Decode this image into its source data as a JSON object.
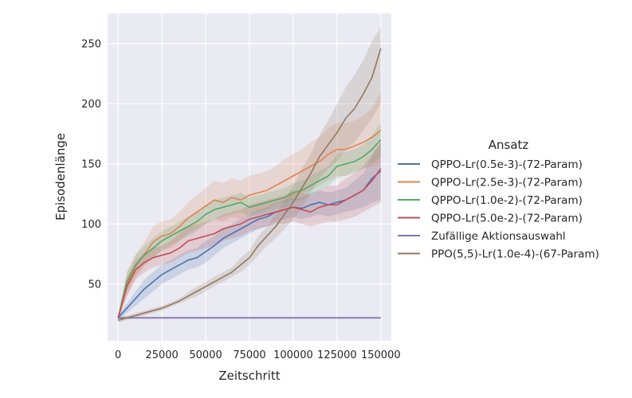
{
  "chart_data": {
    "type": "line",
    "xlabel": "Zeitschritt",
    "ylabel": "Episodenlänge",
    "xlim": [
      -6000,
      156000
    ],
    "ylim": [
      3,
      275
    ],
    "xticks": [
      0,
      25000,
      50000,
      75000,
      100000,
      125000,
      150000
    ],
    "xtick_labels": [
      "0",
      "25000",
      "50000",
      "75000",
      "100000",
      "125000",
      "150000"
    ],
    "yticks": [
      50,
      100,
      150,
      200,
      250
    ],
    "ytick_labels": [
      "50",
      "100",
      "150",
      "200",
      "250"
    ],
    "grid": true,
    "legend": {
      "title": "Ansatz",
      "placement": "right-outside"
    },
    "x": [
      0,
      5000,
      10000,
      15000,
      20000,
      25000,
      30000,
      35000,
      40000,
      45000,
      50000,
      55000,
      60000,
      65000,
      70000,
      75000,
      80000,
      85000,
      90000,
      95000,
      100000,
      105000,
      110000,
      115000,
      120000,
      125000,
      130000,
      135000,
      140000,
      145000,
      150000
    ],
    "series": [
      {
        "name": "QPPO-Lr(0.5e-3)-(72-Param)",
        "color": "#4c72b0",
        "values": [
          22,
          30,
          38,
          46,
          52,
          58,
          62,
          66,
          70,
          72,
          77,
          82,
          88,
          92,
          96,
          100,
          104,
          106,
          110,
          112,
          114,
          113,
          116,
          118,
          116,
          118,
          120,
          124,
          128,
          138,
          144
        ],
        "lower": [
          20,
          26,
          32,
          38,
          44,
          50,
          54,
          58,
          62,
          64,
          68,
          74,
          80,
          84,
          88,
          92,
          96,
          98,
          102,
          104,
          106,
          104,
          106,
          108,
          106,
          108,
          110,
          112,
          114,
          118,
          120
        ],
        "upper": [
          24,
          34,
          44,
          54,
          60,
          66,
          70,
          74,
          78,
          80,
          86,
          90,
          96,
          100,
          104,
          108,
          112,
          114,
          118,
          120,
          122,
          122,
          126,
          128,
          126,
          128,
          130,
          136,
          142,
          156,
          168
        ]
      },
      {
        "name": "QPPO-Lr(2.5e-3)-(72-Param)",
        "color": "#dd8452",
        "values": [
          22,
          50,
          65,
          75,
          85,
          90,
          92,
          98,
          105,
          110,
          115,
          120,
          118,
          122,
          120,
          124,
          126,
          128,
          132,
          136,
          140,
          144,
          148,
          152,
          158,
          162,
          162,
          165,
          168,
          172,
          178
        ],
        "lower": [
          20,
          40,
          55,
          65,
          72,
          78,
          80,
          86,
          92,
          96,
          100,
          104,
          102,
          106,
          104,
          108,
          110,
          112,
          116,
          118,
          122,
          126,
          128,
          132,
          136,
          140,
          140,
          144,
          146,
          148,
          150
        ],
        "upper": [
          24,
          60,
          75,
          85,
          98,
          102,
          104,
          110,
          118,
          124,
          130,
          136,
          134,
          138,
          136,
          140,
          142,
          144,
          148,
          154,
          158,
          162,
          168,
          172,
          180,
          184,
          184,
          186,
          190,
          196,
          210
        ]
      },
      {
        "name": "QPPO-Lr(1.0e-2)-(72-Param)",
        "color": "#55a868",
        "values": [
          22,
          52,
          66,
          74,
          80,
          86,
          90,
          94,
          98,
          102,
          108,
          112,
          114,
          116,
          118,
          114,
          116,
          118,
          120,
          122,
          126,
          128,
          132,
          136,
          140,
          148,
          150,
          152,
          156,
          162,
          170
        ],
        "lower": [
          20,
          44,
          58,
          66,
          72,
          78,
          82,
          86,
          90,
          94,
          100,
          104,
          106,
          108,
          110,
          106,
          108,
          110,
          112,
          114,
          118,
          120,
          124,
          128,
          132,
          138,
          140,
          142,
          146,
          150,
          156
        ],
        "upper": [
          24,
          60,
          74,
          82,
          88,
          94,
          98,
          102,
          106,
          110,
          116,
          120,
          122,
          124,
          126,
          122,
          124,
          126,
          128,
          130,
          134,
          136,
          140,
          144,
          148,
          158,
          160,
          162,
          166,
          174,
          184
        ]
      },
      {
        "name": "QPPO-Lr(5.0e-2)-(72-Param)",
        "color": "#c44e52",
        "values": [
          22,
          48,
          62,
          68,
          72,
          74,
          76,
          80,
          86,
          88,
          90,
          92,
          96,
          98,
          100,
          104,
          106,
          108,
          110,
          112,
          114,
          112,
          110,
          114,
          116,
          116,
          120,
          124,
          128,
          136,
          146
        ],
        "lower": [
          20,
          40,
          54,
          60,
          64,
          66,
          68,
          72,
          76,
          78,
          80,
          82,
          86,
          88,
          90,
          94,
          96,
          98,
          100,
          100,
          102,
          100,
          98,
          100,
          102,
          102,
          104,
          106,
          110,
          114,
          118
        ],
        "upper": [
          24,
          56,
          70,
          76,
          80,
          82,
          86,
          92,
          98,
          100,
          102,
          104,
          108,
          110,
          112,
          116,
          118,
          120,
          122,
          124,
          128,
          126,
          124,
          128,
          132,
          132,
          138,
          142,
          148,
          158,
          168
        ]
      },
      {
        "name": "Zufällige Aktionsauswahl",
        "color": "#8172b3",
        "values": [
          22,
          22,
          22,
          22,
          22,
          22,
          22,
          22,
          22,
          22,
          22,
          22,
          22,
          22,
          22,
          22,
          22,
          22,
          22,
          22,
          22,
          22,
          22,
          22,
          22,
          22,
          22,
          22,
          22,
          22,
          22
        ],
        "lower": [
          21,
          21,
          21,
          21,
          21,
          21,
          21,
          21,
          21,
          21,
          21,
          21,
          21,
          21,
          21,
          21,
          21,
          21,
          21,
          21,
          21,
          21,
          21,
          21,
          21,
          21,
          21,
          21,
          21,
          21,
          21
        ],
        "upper": [
          23,
          23,
          23,
          23,
          23,
          23,
          23,
          23,
          23,
          23,
          23,
          23,
          23,
          23,
          23,
          23,
          23,
          23,
          23,
          23,
          23,
          23,
          23,
          23,
          23,
          23,
          23,
          23,
          23,
          23,
          23
        ]
      },
      {
        "name": "PPO(5,5)-Lr(1.0e-4)-(67-Param)",
        "color": "#937860",
        "values": [
          20,
          22,
          24,
          26,
          28,
          30,
          33,
          36,
          40,
          44,
          48,
          52,
          56,
          60,
          66,
          72,
          82,
          90,
          98,
          108,
          118,
          130,
          142,
          156,
          166,
          176,
          188,
          196,
          208,
          222,
          246
        ],
        "lower": [
          18,
          20,
          22,
          24,
          26,
          28,
          31,
          34,
          37,
          40,
          44,
          48,
          52,
          56,
          60,
          66,
          74,
          82,
          88,
          96,
          104,
          114,
          126,
          138,
          146,
          152,
          162,
          168,
          178,
          188,
          200
        ],
        "upper": [
          22,
          24,
          26,
          28,
          30,
          32,
          35,
          38,
          43,
          48,
          52,
          56,
          60,
          64,
          72,
          78,
          90,
          98,
          108,
          120,
          132,
          146,
          158,
          174,
          186,
          200,
          214,
          224,
          236,
          252,
          264
        ]
      }
    ]
  }
}
